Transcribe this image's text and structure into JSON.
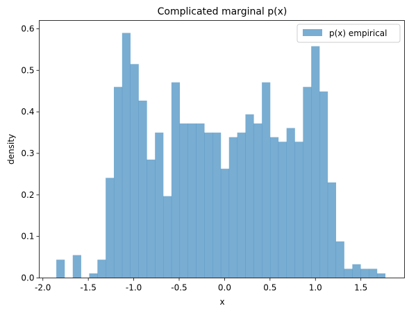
{
  "chart_data": {
    "type": "bar",
    "title": "Complicated marginal p(x)",
    "xlabel": "x",
    "ylabel": "density",
    "xlim": [
      -2.04,
      1.98
    ],
    "ylim": [
      0,
      0.62
    ],
    "xticks": [
      -2.0,
      -1.5,
      -1.0,
      -0.5,
      0.0,
      0.5,
      1.0,
      1.5
    ],
    "xtick_labels": [
      "-2.0",
      "-1.5",
      "-1.0",
      "-0.5",
      "0.0",
      "0.5",
      "1.0",
      "1.5"
    ],
    "yticks": [
      0.0,
      0.1,
      0.2,
      0.3,
      0.4,
      0.5,
      0.6
    ],
    "ytick_labels": [
      "0.0",
      "0.1",
      "0.2",
      "0.3",
      "0.4",
      "0.5",
      "0.6"
    ],
    "bin_start": -1.852,
    "bin_width": 0.0905,
    "series": [
      {
        "name": "p(x) empirical",
        "color": "#1f77b4",
        "alpha": 0.6,
        "values": [
          0.044,
          0.0,
          0.055,
          0.0,
          0.011,
          0.044,
          0.241,
          0.46,
          0.59,
          0.515,
          0.427,
          0.285,
          0.35,
          0.197,
          0.471,
          0.372,
          0.372,
          0.372,
          0.35,
          0.35,
          0.263,
          0.339,
          0.35,
          0.394,
          0.372,
          0.471,
          0.339,
          0.328,
          0.361,
          0.328,
          0.46,
          0.558,
          0.449,
          0.23,
          0.088,
          0.022,
          0.033,
          0.022,
          0.022,
          0.011
        ]
      }
    ],
    "legend_position": "top-right",
    "grid": false
  }
}
